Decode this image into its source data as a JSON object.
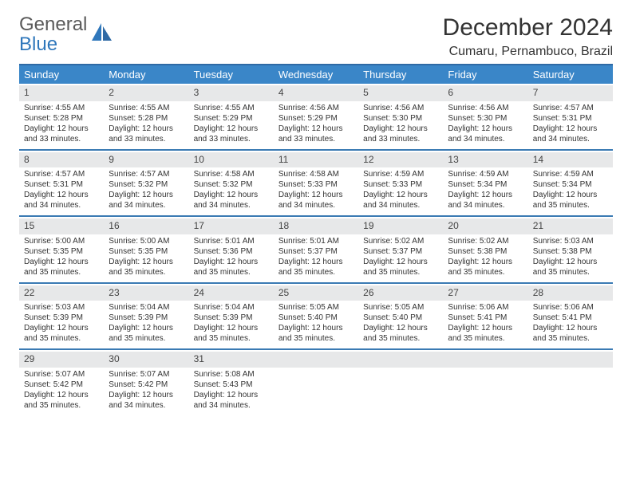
{
  "logo": {
    "text1": "General",
    "text2": "Blue"
  },
  "title": "December 2024",
  "location": "Cumaru, Pernambuco, Brazil",
  "colors": {
    "header_bg": "#3a86c8",
    "rule": "#3a7ab3",
    "date_bg": "#e7e8e9",
    "logo_gray": "#5a5a5a",
    "logo_blue": "#2f77bb"
  },
  "day_names": [
    "Sunday",
    "Monday",
    "Tuesday",
    "Wednesday",
    "Thursday",
    "Friday",
    "Saturday"
  ],
  "weeks": [
    [
      {
        "d": "1",
        "sr": "4:55 AM",
        "ss": "5:28 PM",
        "dl": "12 hours and 33 minutes."
      },
      {
        "d": "2",
        "sr": "4:55 AM",
        "ss": "5:28 PM",
        "dl": "12 hours and 33 minutes."
      },
      {
        "d": "3",
        "sr": "4:55 AM",
        "ss": "5:29 PM",
        "dl": "12 hours and 33 minutes."
      },
      {
        "d": "4",
        "sr": "4:56 AM",
        "ss": "5:29 PM",
        "dl": "12 hours and 33 minutes."
      },
      {
        "d": "5",
        "sr": "4:56 AM",
        "ss": "5:30 PM",
        "dl": "12 hours and 33 minutes."
      },
      {
        "d": "6",
        "sr": "4:56 AM",
        "ss": "5:30 PM",
        "dl": "12 hours and 34 minutes."
      },
      {
        "d": "7",
        "sr": "4:57 AM",
        "ss": "5:31 PM",
        "dl": "12 hours and 34 minutes."
      }
    ],
    [
      {
        "d": "8",
        "sr": "4:57 AM",
        "ss": "5:31 PM",
        "dl": "12 hours and 34 minutes."
      },
      {
        "d": "9",
        "sr": "4:57 AM",
        "ss": "5:32 PM",
        "dl": "12 hours and 34 minutes."
      },
      {
        "d": "10",
        "sr": "4:58 AM",
        "ss": "5:32 PM",
        "dl": "12 hours and 34 minutes."
      },
      {
        "d": "11",
        "sr": "4:58 AM",
        "ss": "5:33 PM",
        "dl": "12 hours and 34 minutes."
      },
      {
        "d": "12",
        "sr": "4:59 AM",
        "ss": "5:33 PM",
        "dl": "12 hours and 34 minutes."
      },
      {
        "d": "13",
        "sr": "4:59 AM",
        "ss": "5:34 PM",
        "dl": "12 hours and 34 minutes."
      },
      {
        "d": "14",
        "sr": "4:59 AM",
        "ss": "5:34 PM",
        "dl": "12 hours and 35 minutes."
      }
    ],
    [
      {
        "d": "15",
        "sr": "5:00 AM",
        "ss": "5:35 PM",
        "dl": "12 hours and 35 minutes."
      },
      {
        "d": "16",
        "sr": "5:00 AM",
        "ss": "5:35 PM",
        "dl": "12 hours and 35 minutes."
      },
      {
        "d": "17",
        "sr": "5:01 AM",
        "ss": "5:36 PM",
        "dl": "12 hours and 35 minutes."
      },
      {
        "d": "18",
        "sr": "5:01 AM",
        "ss": "5:37 PM",
        "dl": "12 hours and 35 minutes."
      },
      {
        "d": "19",
        "sr": "5:02 AM",
        "ss": "5:37 PM",
        "dl": "12 hours and 35 minutes."
      },
      {
        "d": "20",
        "sr": "5:02 AM",
        "ss": "5:38 PM",
        "dl": "12 hours and 35 minutes."
      },
      {
        "d": "21",
        "sr": "5:03 AM",
        "ss": "5:38 PM",
        "dl": "12 hours and 35 minutes."
      }
    ],
    [
      {
        "d": "22",
        "sr": "5:03 AM",
        "ss": "5:39 PM",
        "dl": "12 hours and 35 minutes."
      },
      {
        "d": "23",
        "sr": "5:04 AM",
        "ss": "5:39 PM",
        "dl": "12 hours and 35 minutes."
      },
      {
        "d": "24",
        "sr": "5:04 AM",
        "ss": "5:39 PM",
        "dl": "12 hours and 35 minutes."
      },
      {
        "d": "25",
        "sr": "5:05 AM",
        "ss": "5:40 PM",
        "dl": "12 hours and 35 minutes."
      },
      {
        "d": "26",
        "sr": "5:05 AM",
        "ss": "5:40 PM",
        "dl": "12 hours and 35 minutes."
      },
      {
        "d": "27",
        "sr": "5:06 AM",
        "ss": "5:41 PM",
        "dl": "12 hours and 35 minutes."
      },
      {
        "d": "28",
        "sr": "5:06 AM",
        "ss": "5:41 PM",
        "dl": "12 hours and 35 minutes."
      }
    ],
    [
      {
        "d": "29",
        "sr": "5:07 AM",
        "ss": "5:42 PM",
        "dl": "12 hours and 35 minutes."
      },
      {
        "d": "30",
        "sr": "5:07 AM",
        "ss": "5:42 PM",
        "dl": "12 hours and 34 minutes."
      },
      {
        "d": "31",
        "sr": "5:08 AM",
        "ss": "5:43 PM",
        "dl": "12 hours and 34 minutes."
      },
      null,
      null,
      null,
      null
    ]
  ],
  "labels": {
    "sunrise": "Sunrise:",
    "sunset": "Sunset:",
    "daylight": "Daylight:"
  }
}
